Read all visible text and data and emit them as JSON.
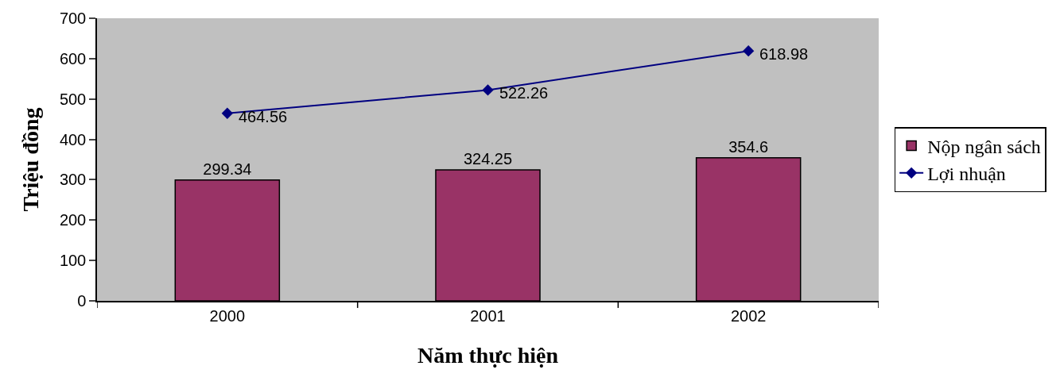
{
  "chart_data": {
    "type": "bar",
    "xlabel": "Năm thực hiện",
    "ylabel": "Triệu đồng",
    "categories": [
      "2000",
      "2001",
      "2002"
    ],
    "series": [
      {
        "name": "Nộp ngân sách",
        "color": "#993366",
        "values": [
          299.34,
          324.25,
          354.6
        ]
      },
      {
        "name": "Lợi nhuận",
        "type": "line",
        "color": "#000080",
        "values": [
          464.56,
          522.26,
          618.98
        ],
        "marker": "diamond"
      }
    ],
    "ylim": [
      0,
      700
    ],
    "yticks": [
      0,
      100,
      200,
      300,
      400,
      500,
      600,
      700
    ],
    "data_labels": true,
    "legend": "right"
  }
}
